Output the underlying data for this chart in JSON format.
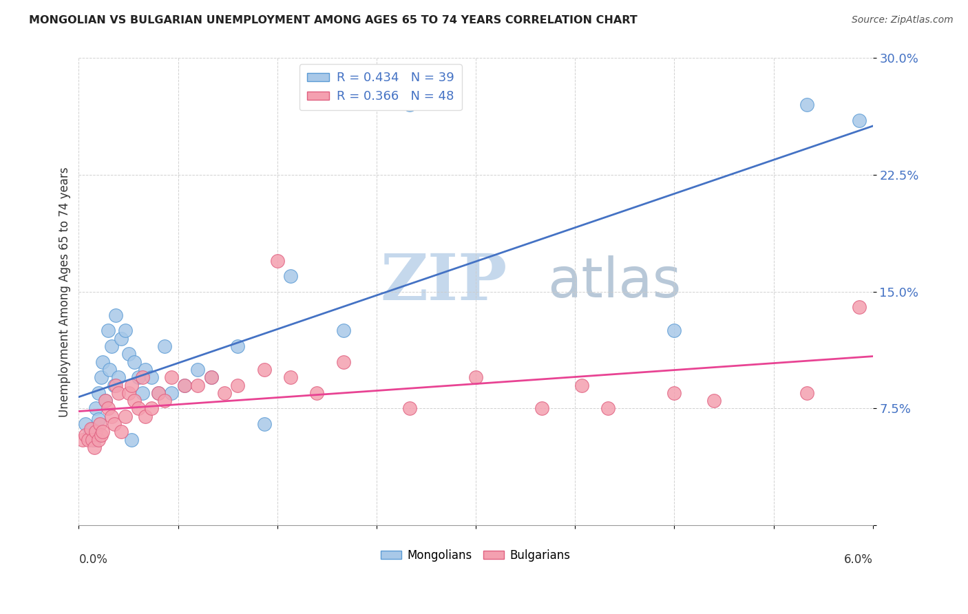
{
  "title": "MONGOLIAN VS BULGARIAN UNEMPLOYMENT AMONG AGES 65 TO 74 YEARS CORRELATION CHART",
  "source": "Source: ZipAtlas.com",
  "ylabel": "Unemployment Among Ages 65 to 74 years",
  "xlim": [
    0,
    6
  ],
  "ylim": [
    0,
    30
  ],
  "yticks": [
    0,
    7.5,
    15.0,
    22.5,
    30.0
  ],
  "ytick_labels": [
    "",
    "7.5%",
    "15.0%",
    "22.5%",
    "30.0%"
  ],
  "R_mongolian": 0.434,
  "N_mongolian": 39,
  "R_bulgarian": 0.366,
  "N_bulgarian": 48,
  "color_mongolian_fill": "#a8c8e8",
  "color_mongolian_edge": "#5b9bd5",
  "color_bulgarian_fill": "#f4a0b0",
  "color_bulgarian_edge": "#e06080",
  "color_line_mongolian": "#4472c4",
  "color_line_bulgarian": "#e84393",
  "color_ytick": "#4472c4",
  "watermark_zip_color": "#c5d8ec",
  "watermark_atlas_color": "#b8c8d8",
  "background_color": "#ffffff",
  "grid_color": "#cccccc",
  "mongolian_x": [
    0.05,
    0.08,
    0.1,
    0.12,
    0.13,
    0.15,
    0.15,
    0.17,
    0.18,
    0.2,
    0.22,
    0.23,
    0.25,
    0.27,
    0.28,
    0.3,
    0.32,
    0.35,
    0.38,
    0.4,
    0.42,
    0.45,
    0.48,
    0.5,
    0.55,
    0.6,
    0.65,
    0.7,
    0.8,
    0.9,
    1.0,
    1.2,
    1.4,
    1.6,
    2.0,
    2.5,
    4.5,
    5.5,
    5.9
  ],
  "mongolian_y": [
    6.5,
    5.8,
    6.2,
    5.5,
    7.5,
    6.8,
    8.5,
    9.5,
    10.5,
    8.0,
    12.5,
    10.0,
    11.5,
    9.0,
    13.5,
    9.5,
    12.0,
    12.5,
    11.0,
    5.5,
    10.5,
    9.5,
    8.5,
    10.0,
    9.5,
    8.5,
    11.5,
    8.5,
    9.0,
    10.0,
    9.5,
    11.5,
    6.5,
    16.0,
    12.5,
    27.0,
    12.5,
    27.0,
    26.0
  ],
  "bulgarian_x": [
    0.03,
    0.05,
    0.07,
    0.09,
    0.1,
    0.12,
    0.13,
    0.15,
    0.16,
    0.17,
    0.18,
    0.2,
    0.22,
    0.25,
    0.27,
    0.28,
    0.3,
    0.32,
    0.35,
    0.38,
    0.4,
    0.42,
    0.45,
    0.48,
    0.5,
    0.55,
    0.6,
    0.65,
    0.7,
    0.8,
    0.9,
    1.0,
    1.1,
    1.2,
    1.4,
    1.5,
    1.6,
    1.8,
    2.0,
    2.5,
    3.0,
    3.5,
    3.8,
    4.0,
    4.5,
    4.8,
    5.5,
    5.9
  ],
  "bulgarian_y": [
    5.5,
    5.8,
    5.5,
    6.2,
    5.5,
    5.0,
    6.0,
    5.5,
    6.5,
    5.8,
    6.0,
    8.0,
    7.5,
    7.0,
    6.5,
    9.0,
    8.5,
    6.0,
    7.0,
    8.5,
    9.0,
    8.0,
    7.5,
    9.5,
    7.0,
    7.5,
    8.5,
    8.0,
    9.5,
    9.0,
    9.0,
    9.5,
    8.5,
    9.0,
    10.0,
    17.0,
    9.5,
    8.5,
    10.5,
    7.5,
    9.5,
    7.5,
    9.0,
    7.5,
    8.5,
    8.0,
    8.5,
    14.0
  ]
}
